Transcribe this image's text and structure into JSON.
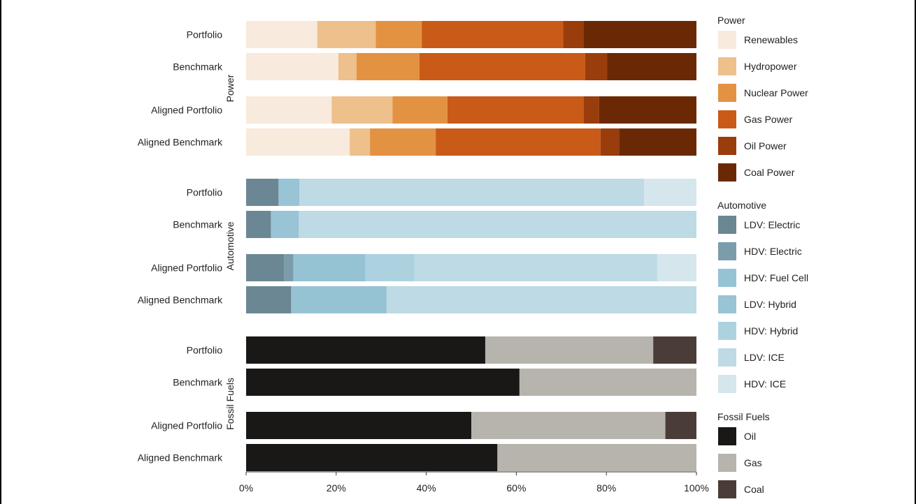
{
  "chart_data": {
    "type": "bar",
    "orientation": "horizontal",
    "stacked": true,
    "x_axis": {
      "range": [
        0,
        100
      ],
      "ticks": [
        "0%",
        "20%",
        "40%",
        "60%",
        "80%",
        "100%"
      ]
    },
    "groups": [
      {
        "name": "Power",
        "categories": [
          "Portfolio",
          "Benchmark",
          "Aligned Portfolio",
          "Aligned Benchmark"
        ],
        "series": [
          {
            "name": "Renewables",
            "color": "#f8eadc",
            "values": [
              15.8,
              20.5,
              19.0,
              23.0
            ]
          },
          {
            "name": "Hydropower",
            "color": "#edc08c",
            "values": [
              13.0,
              4.0,
              13.5,
              4.5
            ]
          },
          {
            "name": "Nuclear Power",
            "color": "#e39242",
            "values": [
              10.2,
              14.0,
              12.2,
              14.6
            ]
          },
          {
            "name": "Gas Power",
            "color": "#c95a17",
            "values": [
              31.4,
              36.8,
              30.3,
              36.6
            ]
          },
          {
            "name": "Oil Power",
            "color": "#983d0b",
            "values": [
              4.5,
              4.9,
              3.4,
              4.1
            ]
          },
          {
            "name": "Coal Power",
            "color": "#6a2904",
            "values": [
              25.1,
              19.8,
              21.6,
              17.2
            ]
          }
        ]
      },
      {
        "name": "Automotive",
        "categories": [
          "Portfolio",
          "Benchmark",
          "Aligned Portfolio",
          "Aligned Benchmark"
        ],
        "series": [
          {
            "name": "LDV: Electric",
            "color": "#6b8793",
            "values": [
              7.2,
              5.5,
              8.4,
              10.0
            ]
          },
          {
            "name": "HDV: Electric",
            "color": "#7b9caa",
            "values": [
              0.0,
              0.0,
              2.1,
              0.0
            ]
          },
          {
            "name": "HDV: Fuel Cell",
            "color": "#96c3d4",
            "values": [
              0.0,
              0.0,
              16.0,
              21.2
            ]
          },
          {
            "name": "LDV: Hybrid",
            "color": "#98c4d5",
            "values": [
              4.6,
              6.2,
              0.0,
              0.0
            ]
          },
          {
            "name": "HDV: Hybrid",
            "color": "#acd2e0",
            "values": [
              0.0,
              0.0,
              10.9,
              0.0
            ]
          },
          {
            "name": "LDV: ICE",
            "color": "#bddae5",
            "values": [
              76.6,
              88.3,
              53.9,
              68.8
            ]
          },
          {
            "name": "HDV: ICE",
            "color": "#d5e6ed",
            "values": [
              11.6,
              0.0,
              8.7,
              0.0
            ]
          }
        ]
      },
      {
        "name": "Fossil Fuels",
        "categories": [
          "Portfolio",
          "Benchmark",
          "Aligned Portfolio",
          "Aligned Benchmark"
        ],
        "series": [
          {
            "name": "Oil",
            "color": "#191816",
            "values": [
              53.1,
              60.7,
              50.0,
              55.8
            ]
          },
          {
            "name": "Gas",
            "color": "#b7b3ad",
            "values": [
              37.3,
              39.3,
              43.1,
              44.2
            ]
          },
          {
            "name": "Coal",
            "color": "#4a3c36",
            "values": [
              9.6,
              0.0,
              6.9,
              0.0
            ]
          }
        ]
      }
    ]
  }
}
